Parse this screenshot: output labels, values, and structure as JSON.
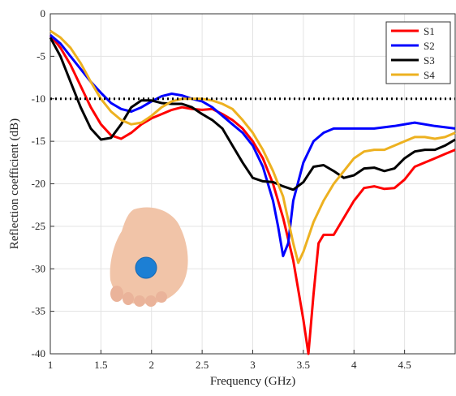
{
  "chart_data": {
    "type": "line",
    "x_label": "Frequency (GHz)",
    "y_label": "Reflection coefficient (dB)",
    "xlim": [
      1,
      5
    ],
    "ylim": [
      -40,
      0
    ],
    "xticks": [
      1,
      1.5,
      2,
      2.5,
      3,
      3.5,
      4,
      4.5
    ],
    "yticks": [
      0,
      -5,
      -10,
      -15,
      -20,
      -25,
      -30,
      -35,
      -40
    ],
    "grid": true,
    "legend": "upper right",
    "threshold": -10,
    "series": [
      {
        "name": "S1",
        "color": "#ff0000",
        "x": [
          1,
          1.1,
          1.2,
          1.3,
          1.4,
          1.5,
          1.6,
          1.7,
          1.8,
          1.9,
          2,
          2.1,
          2.2,
          2.3,
          2.4,
          2.5,
          2.6,
          2.7,
          2.8,
          2.9,
          3,
          3.1,
          3.2,
          3.3,
          3.4,
          3.5,
          3.55,
          3.6,
          3.65,
          3.7,
          3.8,
          3.9,
          4,
          4.1,
          4.2,
          4.3,
          4.4,
          4.5,
          4.6,
          4.7,
          4.8,
          4.9,
          5
        ],
        "values": [
          -2.5,
          -4,
          -6,
          -8.5,
          -11,
          -13,
          -14.3,
          -14.7,
          -14,
          -13,
          -12.3,
          -11.8,
          -11.3,
          -11,
          -11.2,
          -11.3,
          -11.2,
          -11.8,
          -12.5,
          -13.5,
          -15,
          -17,
          -20,
          -24,
          -29,
          -36,
          -40,
          -33,
          -27,
          -26,
          -26,
          -24,
          -22,
          -20.5,
          -20.3,
          -20.6,
          -20.5,
          -19.5,
          -18,
          -17.5,
          -17,
          -16.5,
          -16
        ]
      },
      {
        "name": "S2",
        "color": "#0000ff",
        "x": [
          1,
          1.1,
          1.2,
          1.3,
          1.4,
          1.5,
          1.6,
          1.7,
          1.8,
          1.9,
          2,
          2.1,
          2.2,
          2.3,
          2.4,
          2.5,
          2.6,
          2.7,
          2.8,
          2.9,
          3,
          3.1,
          3.2,
          3.25,
          3.3,
          3.35,
          3.4,
          3.5,
          3.6,
          3.7,
          3.8,
          3.9,
          4,
          4.2,
          4.4,
          4.6,
          4.8,
          5
        ],
        "values": [
          -2.5,
          -3.5,
          -5,
          -6.5,
          -8,
          -9.3,
          -10.5,
          -11.2,
          -11.5,
          -11,
          -10.3,
          -9.7,
          -9.4,
          -9.6,
          -10,
          -10.3,
          -11,
          -12,
          -13,
          -14,
          -15.5,
          -18,
          -22,
          -25,
          -28.5,
          -27,
          -22,
          -17.5,
          -15,
          -14,
          -13.5,
          -13.5,
          -13.5,
          -13.5,
          -13.2,
          -12.8,
          -13.2,
          -13.5
        ]
      },
      {
        "name": "S3",
        "color": "#000000",
        "x": [
          1,
          1.1,
          1.2,
          1.3,
          1.4,
          1.5,
          1.6,
          1.7,
          1.8,
          1.9,
          2,
          2.1,
          2.2,
          2.3,
          2.4,
          2.5,
          2.6,
          2.7,
          2.8,
          2.9,
          3,
          3.1,
          3.2,
          3.3,
          3.4,
          3.5,
          3.6,
          3.7,
          3.8,
          3.9,
          4,
          4.1,
          4.2,
          4.3,
          4.4,
          4.5,
          4.6,
          4.7,
          4.8,
          4.9,
          5
        ],
        "values": [
          -2.8,
          -5,
          -8,
          -11,
          -13.5,
          -14.8,
          -14.6,
          -13,
          -11,
          -10.2,
          -10.2,
          -10.5,
          -10.6,
          -10.6,
          -11,
          -11.8,
          -12.5,
          -13.5,
          -15.5,
          -17.5,
          -19.3,
          -19.7,
          -19.8,
          -20.3,
          -20.7,
          -19.8,
          -18,
          -17.8,
          -18.5,
          -19.3,
          -19,
          -18.2,
          -18.1,
          -18.5,
          -18.2,
          -17,
          -16.2,
          -16,
          -16,
          -15.5,
          -14.8
        ]
      },
      {
        "name": "S4",
        "color": "#edb120",
        "x": [
          1,
          1.1,
          1.2,
          1.3,
          1.4,
          1.5,
          1.6,
          1.7,
          1.8,
          1.9,
          2,
          2.1,
          2.2,
          2.3,
          2.4,
          2.5,
          2.6,
          2.7,
          2.8,
          2.9,
          3,
          3.1,
          3.2,
          3.3,
          3.4,
          3.45,
          3.5,
          3.6,
          3.7,
          3.8,
          3.9,
          4,
          4.1,
          4.2,
          4.3,
          4.4,
          4.5,
          4.6,
          4.7,
          4.8,
          4.9,
          5
        ],
        "values": [
          -2,
          -2.8,
          -4,
          -5.8,
          -8,
          -10,
          -11.5,
          -12.5,
          -13,
          -12.8,
          -12,
          -11,
          -10.3,
          -10,
          -10,
          -10,
          -10.2,
          -10.6,
          -11.2,
          -12.5,
          -14,
          -16,
          -18.5,
          -21.5,
          -27,
          -29.3,
          -28,
          -24.5,
          -22,
          -20,
          -18.5,
          -17,
          -16.2,
          -16,
          -16,
          -15.5,
          -15,
          -14.5,
          -14.5,
          -14.7,
          -14.5,
          -14
        ]
      }
    ]
  }
}
